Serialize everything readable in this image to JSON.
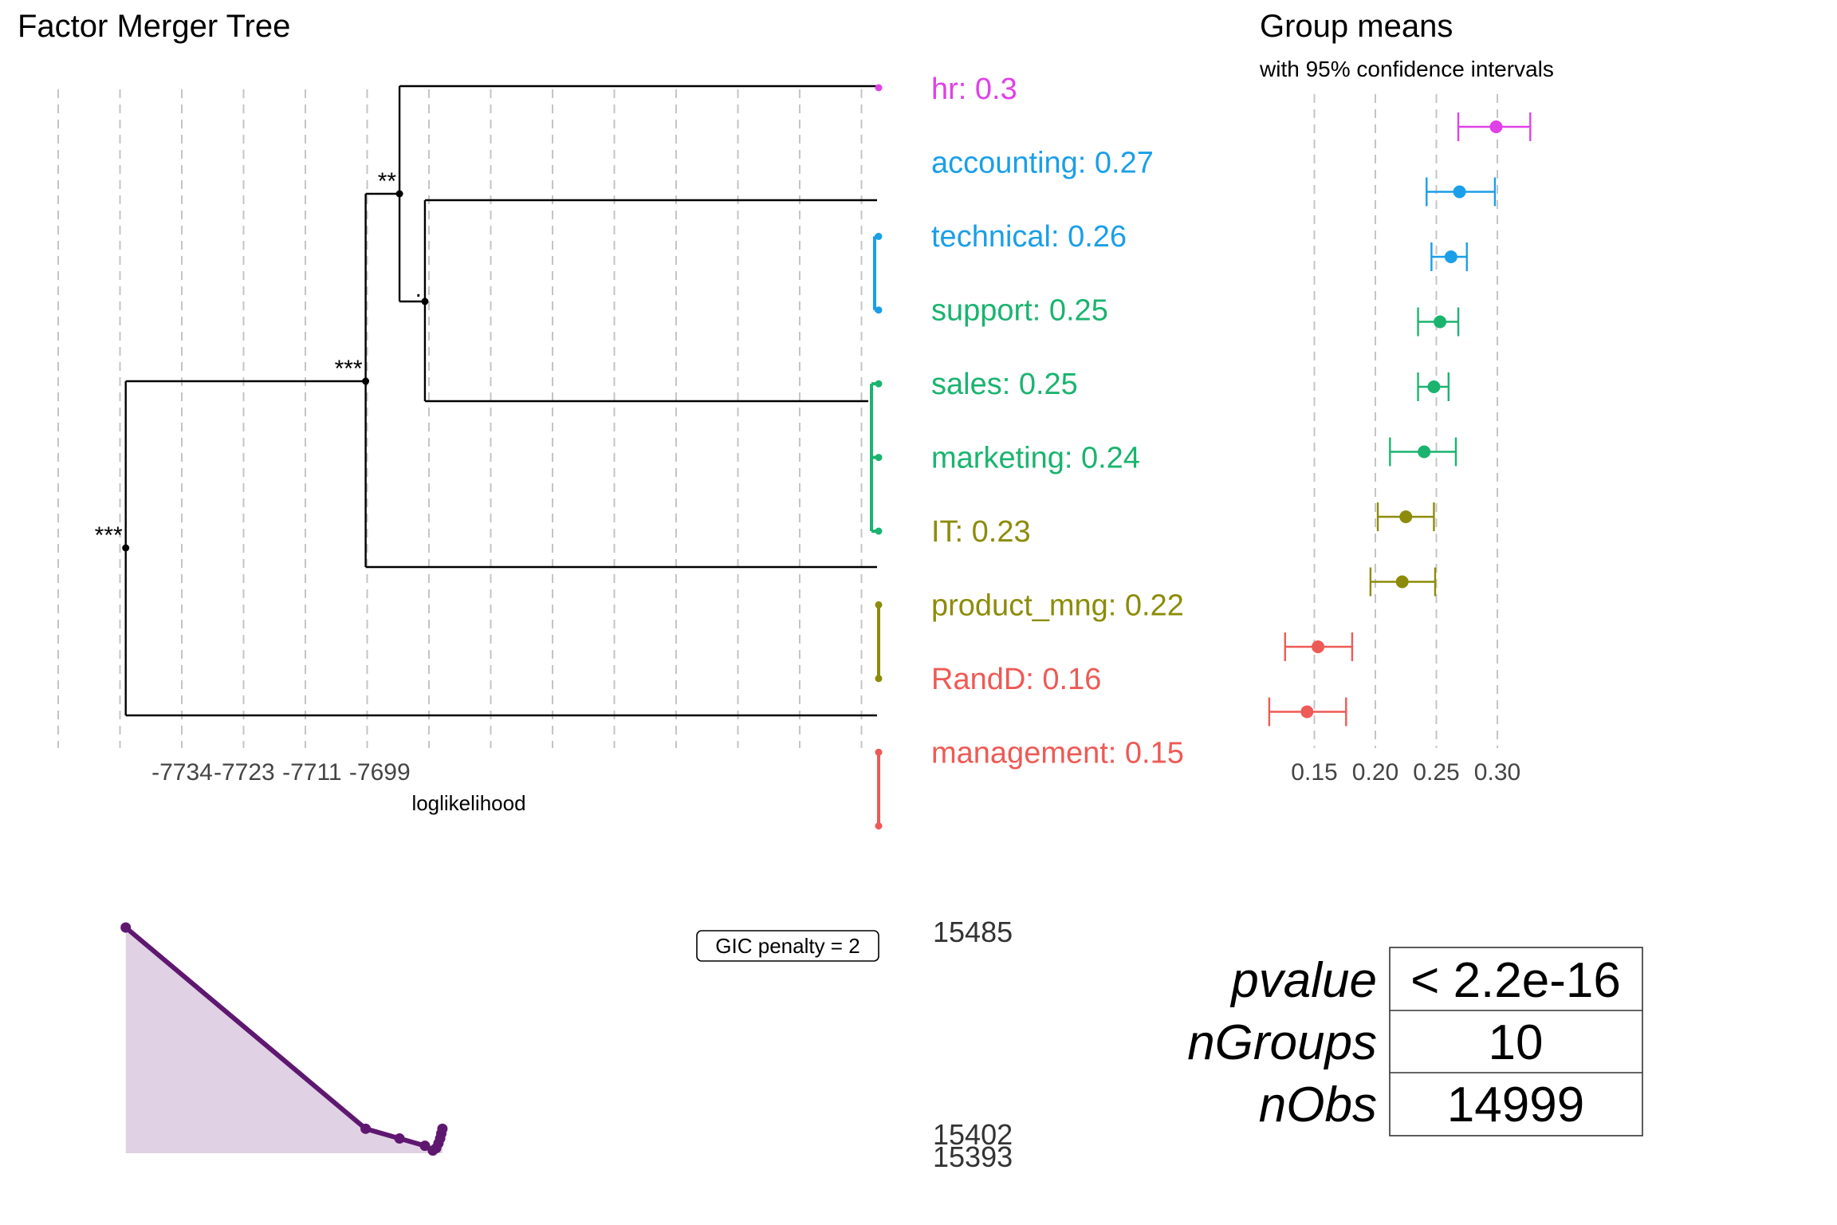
{
  "chart_data": [
    {
      "type": "tree",
      "title": "Factor Merger Tree",
      "xlabel": "loglikelihood",
      "xticks": [
        -7734,
        -7723,
        -7711,
        -7699
      ],
      "grid": "vertical dashed",
      "groups": [
        {
          "label": "hr: 0.3",
          "mean": 0.3,
          "color": "#E041E6"
        },
        {
          "label": "accounting: 0.27",
          "mean": 0.27,
          "color": "#1A9FE8"
        },
        {
          "label": "technical: 0.26",
          "mean": 0.26,
          "color": "#1A9FE8"
        },
        {
          "label": "support: 0.25",
          "mean": 0.25,
          "color": "#1AB46F"
        },
        {
          "label": "sales: 0.25",
          "mean": 0.25,
          "color": "#1AB46F"
        },
        {
          "label": "marketing: 0.24",
          "mean": 0.24,
          "color": "#1AB46F"
        },
        {
          "label": "IT: 0.23",
          "mean": 0.23,
          "color": "#8C8C0A"
        },
        {
          "label": "product_mng: 0.22",
          "mean": 0.22,
          "color": "#8C8C0A"
        },
        {
          "label": "RandD: 0.16",
          "mean": 0.16,
          "color": "#EE5A55"
        },
        {
          "label": "management: 0.15",
          "mean": 0.15,
          "color": "#EE5A55"
        }
      ],
      "merges": [
        {
          "significance": "***",
          "loglikelihood": -7744.0
        },
        {
          "significance": "***",
          "loglikelihood": -7701.5
        },
        {
          "significance": "**",
          "loglikelihood": -7695.5
        },
        {
          "significance": ".",
          "loglikelihood": -7691.0
        }
      ]
    },
    {
      "type": "errorbar",
      "title": "Group means",
      "subtitle": "with 95% confidence intervals",
      "xticks": [
        "0.15",
        "0.20",
        "0.25",
        "0.30"
      ],
      "xlim": [
        0.083,
        0.33
      ],
      "points": [
        {
          "group": "hr",
          "mean": 0.299,
          "lo": 0.268,
          "hi": 0.327
        },
        {
          "group": "accounting",
          "mean": 0.269,
          "lo": 0.242,
          "hi": 0.298
        },
        {
          "group": "technical",
          "mean": 0.262,
          "lo": 0.246,
          "hi": 0.275
        },
        {
          "group": "support",
          "mean": 0.253,
          "lo": 0.235,
          "hi": 0.268
        },
        {
          "group": "sales",
          "mean": 0.248,
          "lo": 0.235,
          "hi": 0.26
        },
        {
          "group": "marketing",
          "mean": 0.24,
          "lo": 0.212,
          "hi": 0.266
        },
        {
          "group": "IT",
          "mean": 0.225,
          "lo": 0.202,
          "hi": 0.248
        },
        {
          "group": "product_mng",
          "mean": 0.222,
          "lo": 0.196,
          "hi": 0.249
        },
        {
          "group": "RandD",
          "mean": 0.153,
          "lo": 0.126,
          "hi": 0.181
        },
        {
          "group": "management",
          "mean": 0.144,
          "lo": 0.113,
          "hi": 0.176
        }
      ]
    },
    {
      "type": "area",
      "annotation": "GIC penalty = 2",
      "ytick_labels": [
        "15485",
        "15402",
        "15393"
      ],
      "ylim": [
        15393,
        15485
      ],
      "color": "#5E1870",
      "x": [
        -7744.0,
        -7701.5,
        -7695.5,
        -7691.0,
        -7689.6,
        -7689.0,
        -7688.6,
        -7688.3,
        -7688.1,
        -7687.9
      ],
      "values": [
        15485,
        15402,
        15398,
        15395,
        15393,
        15394,
        15396,
        15398,
        15400,
        15402
      ]
    }
  ],
  "stats_table": {
    "rows": [
      {
        "label": "pvalue",
        "value": "< 2.2e-16"
      },
      {
        "label": "nGroups",
        "value": "10"
      },
      {
        "label": "nObs",
        "value": "14999"
      }
    ]
  }
}
